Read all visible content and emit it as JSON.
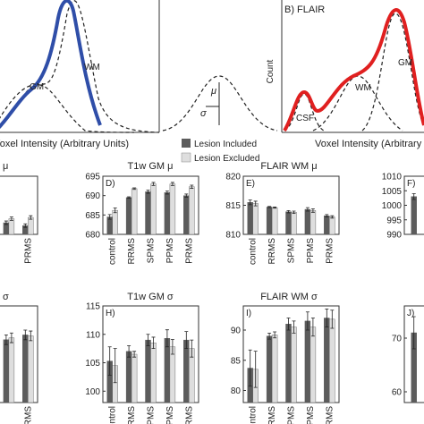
{
  "panel_a": {
    "x_label": "Voxel Intensity (Arbitrary Units)",
    "labels": [
      "GM",
      "WM"
    ]
  },
  "diagram": {
    "mu": "μ",
    "sigma": "σ"
  },
  "panel_b": {
    "title": "B) FLAIR",
    "y_label": "Count",
    "x_label": "Voxel Intensity (Arbitrary Units)",
    "labels": [
      "CSF",
      "WM",
      "GM"
    ]
  },
  "chart_data": [
    {
      "type": "bar",
      "title": "μ",
      "categories": [
        null,
        "PRMS"
      ],
      "ylim": [
        0,
        10
      ],
      "series": [
        {
          "name": "Lesion Included",
          "color": "#5c5c5c",
          "values": [
            2,
            1.5
          ],
          "errors": [
            0.3,
            0.3
          ]
        },
        {
          "name": "Lesion Excluded",
          "color": "#dedede",
          "values": [
            2.7,
            2.9
          ],
          "errors": [
            0.3,
            0.3
          ]
        }
      ]
    },
    {
      "type": "bar",
      "title": "T1w GM μ",
      "panel_label": "D)",
      "categories": [
        "control",
        "RRMS",
        "SPMS",
        "PPMS",
        "PRMS"
      ],
      "ylim": [
        680,
        695
      ],
      "yticks": [
        680,
        685,
        690,
        695
      ],
      "series": [
        {
          "name": "Lesion Included",
          "color": "#5c5c5c",
          "values": [
            684.5,
            689.5,
            691,
            690.8,
            690
          ],
          "errors": [
            0.6,
            0.2,
            0.4,
            0.4,
            0.4
          ]
        },
        {
          "name": "Lesion Excluded",
          "color": "#dedede",
          "values": [
            686.2,
            691.8,
            693,
            693,
            692.3
          ],
          "errors": [
            0.6,
            0.2,
            0.4,
            0.4,
            0.4
          ]
        }
      ]
    },
    {
      "type": "bar",
      "title": "FLAIR WM μ",
      "panel_label": "E)",
      "categories": [
        "control",
        "RRMS",
        "SPMS",
        "PPMS",
        "PRMS"
      ],
      "ylim": [
        810,
        820
      ],
      "yticks": [
        810,
        815,
        820
      ],
      "series": [
        {
          "name": "Lesion Included",
          "color": "#5c5c5c",
          "values": [
            815.5,
            814.7,
            813.9,
            814.3,
            813.2
          ],
          "errors": [
            0.4,
            0.1,
            0.2,
            0.3,
            0.2
          ]
        },
        {
          "name": "Lesion Excluded",
          "color": "#dedede",
          "values": [
            815.3,
            814.6,
            813.8,
            814.1,
            813.0
          ],
          "errors": [
            0.4,
            0.1,
            0.2,
            0.3,
            0.2
          ]
        }
      ]
    },
    {
      "type": "bar",
      "panel_label": "F)",
      "categories": [
        null
      ],
      "ylim": [
        990,
        1010
      ],
      "yticks": [
        990,
        995,
        1000,
        1005,
        1010
      ],
      "series": [
        {
          "name": "Lesion Included",
          "color": "#5c5c5c",
          "values": [
            1003
          ],
          "errors": [
            1
          ]
        }
      ]
    },
    {
      "type": "bar",
      "title": "σ",
      "categories": [
        null,
        "PRMS"
      ],
      "ylim": [
        0,
        10
      ],
      "series": [
        {
          "name": "Lesion Included",
          "color": "#5c5c5c",
          "values": [
            6.5,
            7.0
          ],
          "errors": [
            0.5,
            0.5
          ]
        },
        {
          "name": "Lesion Excluded",
          "color": "#dedede",
          "values": [
            6.7,
            6.9
          ],
          "errors": [
            0.5,
            0.5
          ]
        }
      ]
    },
    {
      "type": "bar",
      "title": "T1w GM σ",
      "panel_label": "H)",
      "categories": [
        "control",
        "RRMS",
        "SPMS",
        "PPMS",
        "PRMS"
      ],
      "ylim": [
        98,
        115
      ],
      "yticks": [
        100,
        105,
        110,
        115
      ],
      "series": [
        {
          "name": "Lesion Included",
          "color": "#5c5c5c",
          "values": [
            105.3,
            107,
            109,
            109.3,
            109
          ],
          "errors": [
            2.5,
            1,
            1,
            1.5,
            1.5
          ]
        },
        {
          "name": "Lesion Excluded",
          "color": "#dedede",
          "values": [
            104.5,
            106.5,
            108.5,
            107.8,
            107.5
          ],
          "errors": [
            3,
            0.5,
            1,
            1.3,
            1.5
          ]
        }
      ]
    },
    {
      "type": "bar",
      "title": "FLAIR WM σ",
      "panel_label": "I)",
      "categories": [
        "control",
        "RRMS",
        "SPMS",
        "PPMS",
        "PRMS"
      ],
      "ylim": [
        78,
        94
      ],
      "yticks": [
        80,
        85,
        90
      ],
      "series": [
        {
          "name": "Lesion Included",
          "color": "#5c5c5c",
          "values": [
            83.7,
            89,
            91,
            91.5,
            92
          ],
          "errors": [
            3,
            0.5,
            1,
            1.5,
            1.5
          ]
        },
        {
          "name": "Lesion Excluded",
          "color": "#dedede",
          "values": [
            83.5,
            89.2,
            90.5,
            90.5,
            91.8
          ],
          "errors": [
            3,
            0.5,
            1,
            1.5,
            1.5
          ]
        }
      ]
    },
    {
      "type": "bar",
      "panel_label": "J)",
      "categories": [
        null
      ],
      "ylim": [
        58,
        76
      ],
      "yticks": [
        60,
        70
      ],
      "series": [
        {
          "name": "Lesion Included",
          "color": "#5c5c5c",
          "values": [
            71
          ],
          "errors": [
            3
          ]
        }
      ]
    }
  ]
}
